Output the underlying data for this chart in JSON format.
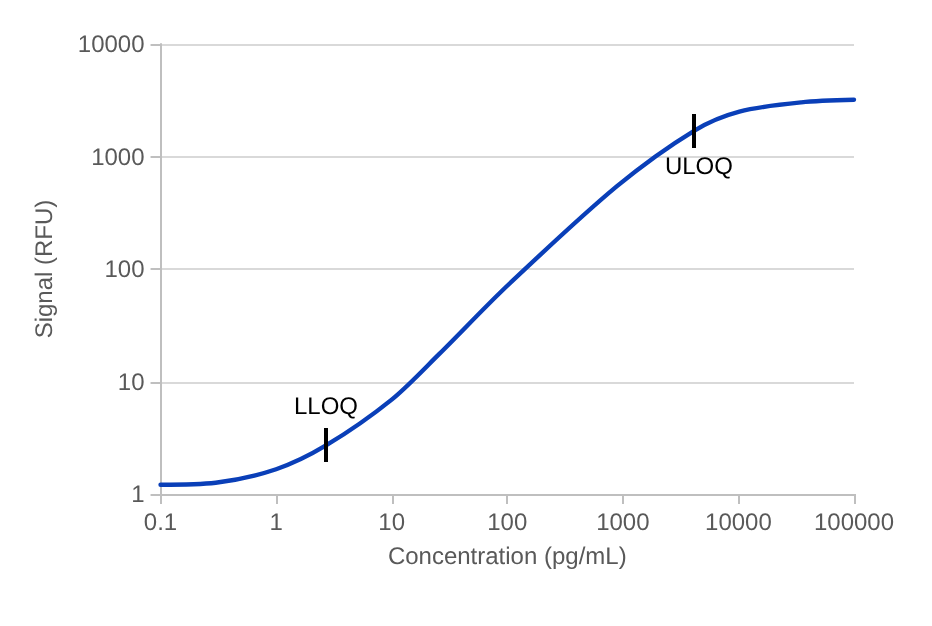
{
  "chart_data": {
    "type": "line",
    "xlabel": "Concentration (pg/mL)",
    "ylabel": "Signal (RFU)",
    "x": [
      0.1,
      0.3,
      1,
      2.7,
      10,
      25.7,
      100,
      890,
      4200,
      10200,
      35000,
      100000
    ],
    "series": [
      {
        "color": "#0a3fb8",
        "values": [
          1.21,
          1.26,
          1.66,
          2.7,
          6.9,
          17.5,
          71,
          545,
          1710,
          2510,
          3030,
          3190
        ]
      }
    ],
    "annotations": [
      {
        "text": "LLOQ",
        "x": 2.7,
        "y": 2.7
      },
      {
        "text": "ULOQ",
        "x": 4200,
        "y": 1710
      }
    ],
    "log": "xy",
    "xlim": [
      0.1,
      100000
    ],
    "ylim": [
      1,
      10000
    ],
    "xticks": [
      0.1,
      1,
      10,
      100,
      1000,
      10000,
      100000
    ],
    "yticks": [
      1,
      10,
      100,
      1000,
      10000
    ],
    "grid": "y",
    "marker": "none",
    "line_style": "solid"
  }
}
